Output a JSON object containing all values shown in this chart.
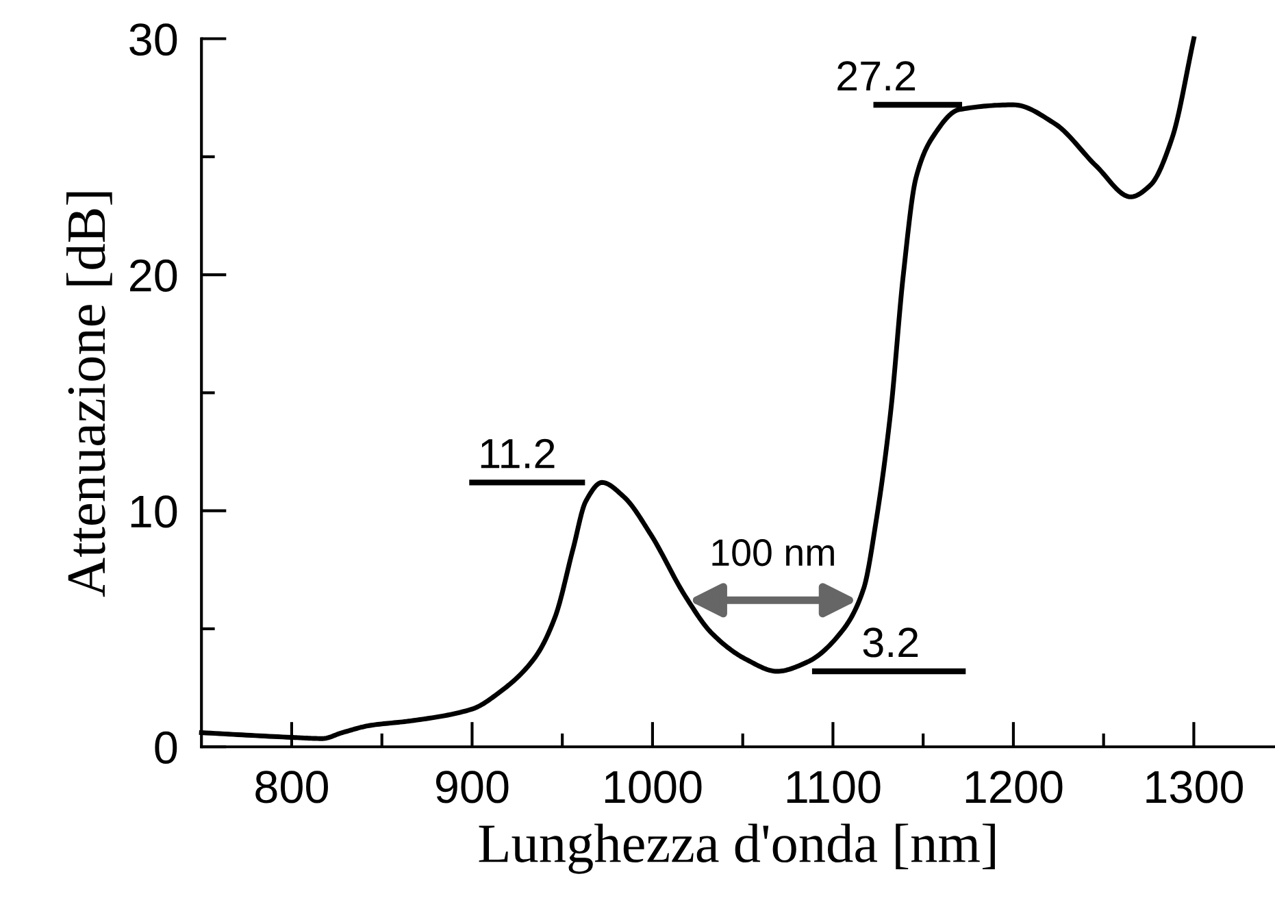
{
  "chart_data": {
    "type": "line",
    "xlabel": "Lunghezza d'onda [nm]",
    "ylabel": "Attenuazione [dB]",
    "x": [
      750,
      800,
      817,
      828,
      843,
      866,
      900,
      915,
      935,
      946,
      956,
      963,
      972,
      984,
      999,
      1018,
      1033,
      1052,
      1069,
      1086,
      1105,
      1117,
      1124,
      1132,
      1139,
      1146,
      1155,
      1170,
      1200,
      1223,
      1246,
      1265,
      1276,
      1288,
      1300
    ],
    "series": [
      {
        "color": "#000000",
        "values": [
          0.6,
          0.4,
          0.35,
          0.6,
          0.9,
          1.1,
          1.6,
          2.3,
          3.8,
          5.5,
          8.4,
          10.4,
          11.2,
          10.6,
          9.0,
          6.4,
          4.8,
          3.7,
          3.2,
          3.6,
          4.9,
          6.7,
          9.6,
          14.2,
          20.0,
          24.1,
          25.8,
          27.0,
          27.2,
          26.4,
          24.6,
          23.3,
          23.8,
          25.8,
          30
        ]
      },
      {
        "color": "#000000",
        "x": [
          900,
          961
        ],
        "values": [
          11.2,
          11.2
        ]
      },
      {
        "color": "#000000",
        "x": [
          1090,
          1172
        ],
        "values": [
          3.2,
          3.2
        ]
      },
      {
        "color": "#000000",
        "x": [
          1124,
          1170
        ],
        "values": [
          27.2,
          27.2
        ]
      }
    ],
    "xlim": [
      750,
      1345
    ],
    "ylim": [
      0,
      30
    ],
    "xticks": [
      800,
      {
        "value": 850,
        "label": null
      },
      900,
      {
        "value": 950,
        "label": null
      },
      1000,
      {
        "value": 1050,
        "label": null
      },
      1100,
      {
        "value": 1150,
        "label": null
      },
      1200,
      {
        "value": 1250,
        "label": null
      },
      1300
    ],
    "yticks": [
      0,
      {
        "value": 5,
        "label": null
      },
      10,
      {
        "value": 15,
        "label": null
      },
      20,
      {
        "value": 25,
        "label": null
      },
      30
    ],
    "annotations": [
      {
        "text": "11.2",
        "x": 925,
        "y": 11.2
      },
      "100 nm",
      {
        "text": "3.2",
        "x": 1132,
        "y": 3.2
      },
      {
        "text": "27.2",
        "x": 1124,
        "y": 27.2
      }
    ],
    "grid": false,
    "legend": false,
    "marker": "none",
    "line_style": "solid"
  }
}
